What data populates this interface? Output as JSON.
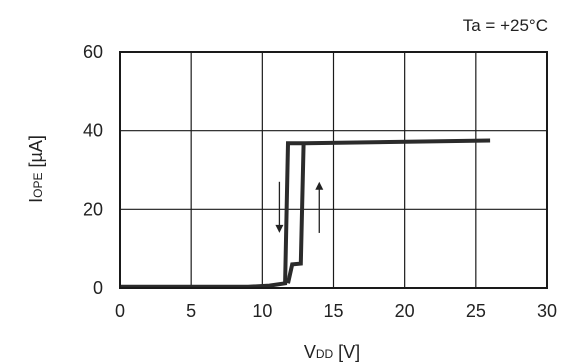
{
  "chart_data": {
    "type": "line",
    "annotation": "Ta = +25°C",
    "xlabel_main": "V",
    "xlabel_sub": "DD",
    "xlabel_unit": " [V]",
    "ylabel_main": "I",
    "ylabel_sub": "OPE",
    "ylabel_unit": " [µA]",
    "xlim": [
      0,
      30
    ],
    "ylim": [
      0,
      60
    ],
    "x_ticks": [
      0,
      5,
      10,
      15,
      20,
      25,
      30
    ],
    "y_ticks": [
      0,
      20,
      40,
      60
    ],
    "grid": true,
    "hysteresis_arrows": [
      "down",
      "up"
    ],
    "series": [
      {
        "points": [
          [
            0,
            0.3
          ],
          [
            6,
            0.3
          ],
          [
            9,
            0.3
          ],
          [
            10.5,
            0.6
          ],
          [
            11.6,
            1.2
          ],
          [
            11.8,
            36.8
          ],
          [
            13.0,
            36.8
          ],
          [
            26,
            37.5
          ]
        ]
      },
      {
        "points": [
          [
            11.8,
            1.2
          ],
          [
            12.1,
            6.0
          ],
          [
            12.7,
            6.2
          ],
          [
            12.9,
            36.8
          ]
        ]
      }
    ]
  }
}
